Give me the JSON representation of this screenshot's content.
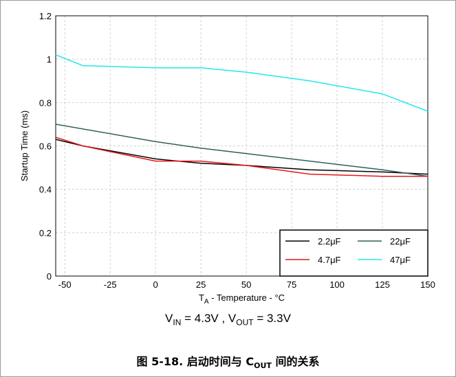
{
  "chart_data": {
    "type": "line",
    "ylabel": "Startup Time (ms)",
    "xlabel_sub": "A",
    "xlabel_pre": "T",
    "xlabel_post": " - Temperature - °C",
    "x_ticks": [
      "-50",
      "-25",
      "0",
      "25",
      "50",
      "75",
      "100",
      "125",
      "150"
    ],
    "y_ticks": [
      "0",
      "0.2",
      "0.4",
      "0.6",
      "0.8",
      "1",
      "1.2"
    ],
    "xlim": [
      -55,
      150
    ],
    "ylim": [
      0,
      1.2
    ],
    "grid": true,
    "legend_position": "bottom-right",
    "series": [
      {
        "name": "2.2μF",
        "color": "#000000",
        "x": [
          -55,
          -40,
          0,
          25,
          50,
          85,
          125,
          150
        ],
        "y": [
          0.63,
          0.6,
          0.54,
          0.52,
          0.51,
          0.49,
          0.48,
          0.47
        ]
      },
      {
        "name": "22μF",
        "color": "#2f5f5a",
        "x": [
          -55,
          0,
          25,
          50,
          85,
          125,
          150
        ],
        "y": [
          0.7,
          0.62,
          0.59,
          0.565,
          0.53,
          0.49,
          0.46
        ]
      },
      {
        "name": "4.7μF",
        "color": "#e8141a",
        "x": [
          -55,
          -40,
          0,
          25,
          50,
          85,
          125,
          150
        ],
        "y": [
          0.64,
          0.6,
          0.53,
          0.53,
          0.51,
          0.47,
          0.46,
          0.46
        ]
      },
      {
        "name": "47μF",
        "color": "#22e8ea",
        "x": [
          -55,
          -40,
          0,
          25,
          50,
          85,
          125,
          150
        ],
        "y": [
          1.02,
          0.97,
          0.96,
          0.96,
          0.94,
          0.9,
          0.84,
          0.76
        ]
      }
    ]
  },
  "conditions": {
    "vin_pre": "V",
    "vin_sub": "IN",
    "vin_post": " = 4.3V , ",
    "vout_pre": "V",
    "vout_sub": "OUT",
    "vout_post": " = 3.3V"
  },
  "figure_caption": {
    "pre": "图 5-18. 启动时间与 C",
    "sub": "OUT",
    "post": " 间的关系"
  }
}
